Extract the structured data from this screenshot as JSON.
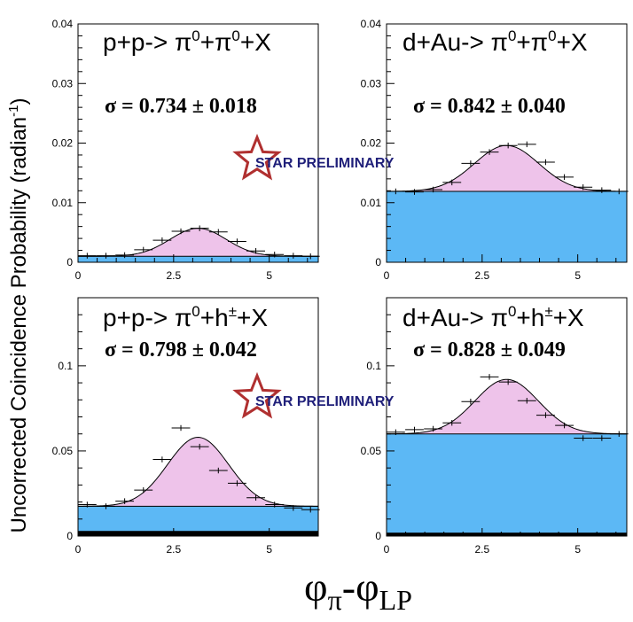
{
  "figure": {
    "ylabel_main": "Uncorrected Coincidence Probability (radian",
    "ylabel_sup": "-1",
    "ylabel_close": ")",
    "xlabel_phi1": "φ",
    "xlabel_sub1": "π",
    "xlabel_dash": "-",
    "xlabel_phi2": "φ",
    "xlabel_sub2": "LP",
    "watermark": "STAR PRELIMINARY",
    "colors": {
      "pedestal": "#5cb8f5",
      "gaussian": "#eec3ea",
      "star_red": "#b03030",
      "star_text": "#20207a"
    }
  },
  "chart_data": [
    {
      "type": "histogram",
      "title_parts": [
        {
          "t": "p+p-> π",
          "sup": false
        },
        {
          "t": "0",
          "sup": true
        },
        {
          "t": "+π",
          "sup": false
        },
        {
          "t": "0",
          "sup": true
        },
        {
          "t": "+X",
          "sup": false
        }
      ],
      "sigma": "σ = 0.734 ± 0.018",
      "xlim": [
        0,
        6.283
      ],
      "ylim": [
        0,
        0.04
      ],
      "yticks": [
        0,
        0.01,
        0.02,
        0.03,
        0.04
      ],
      "ytick_labels": [
        "0",
        "0.01",
        "0.02",
        "0.03",
        "0.04"
      ],
      "xticks": [
        0,
        2.5,
        5
      ],
      "xtick_labels": [
        "0",
        "2.5",
        "5"
      ],
      "pedestal": 0.001,
      "gauss_amplitude": 0.0047,
      "gauss_mean": 3.14,
      "gauss_sigma": 0.734,
      "black_band": 0,
      "points": [
        {
          "x": 0.24,
          "y": 0.0011
        },
        {
          "x": 0.73,
          "y": 0.0011
        },
        {
          "x": 1.22,
          "y": 0.0012
        },
        {
          "x": 1.71,
          "y": 0.0021
        },
        {
          "x": 2.2,
          "y": 0.0037
        },
        {
          "x": 2.69,
          "y": 0.0052
        },
        {
          "x": 3.18,
          "y": 0.0057
        },
        {
          "x": 3.67,
          "y": 0.0051
        },
        {
          "x": 4.16,
          "y": 0.0035
        },
        {
          "x": 4.65,
          "y": 0.0019
        },
        {
          "x": 5.14,
          "y": 0.0013
        },
        {
          "x": 5.63,
          "y": 0.0011
        },
        {
          "x": 6.08,
          "y": 0.001
        }
      ]
    },
    {
      "type": "histogram",
      "title_parts": [
        {
          "t": "d+Au-> π",
          "sup": false
        },
        {
          "t": "0",
          "sup": true
        },
        {
          "t": "+π",
          "sup": false
        },
        {
          "t": "0",
          "sup": true
        },
        {
          "t": "+X",
          "sup": false
        }
      ],
      "sigma": "σ = 0.842 ± 0.040",
      "xlim": [
        0,
        6.283
      ],
      "ylim": [
        0,
        0.04
      ],
      "yticks": [
        0,
        0.01,
        0.02,
        0.03,
        0.04
      ],
      "ytick_labels": [
        "0",
        "0.01",
        "0.02",
        "0.03",
        "0.04"
      ],
      "xticks": [
        0,
        2.5,
        5
      ],
      "xtick_labels": [
        "0",
        "2.5",
        "5"
      ],
      "pedestal": 0.0119,
      "gauss_amplitude": 0.0077,
      "gauss_mean": 3.14,
      "gauss_sigma": 0.842,
      "black_band": 0,
      "points": [
        {
          "x": 0.24,
          "y": 0.0119
        },
        {
          "x": 0.73,
          "y": 0.0118
        },
        {
          "x": 1.22,
          "y": 0.0122
        },
        {
          "x": 1.71,
          "y": 0.0134
        },
        {
          "x": 2.2,
          "y": 0.0166
        },
        {
          "x": 2.69,
          "y": 0.0185
        },
        {
          "x": 3.18,
          "y": 0.0196
        },
        {
          "x": 3.67,
          "y": 0.0198
        },
        {
          "x": 4.16,
          "y": 0.0168
        },
        {
          "x": 4.65,
          "y": 0.0143
        },
        {
          "x": 5.14,
          "y": 0.0126
        },
        {
          "x": 5.63,
          "y": 0.0121
        },
        {
          "x": 6.08,
          "y": 0.0119
        }
      ]
    },
    {
      "type": "histogram",
      "title_parts": [
        {
          "t": "p+p-> π",
          "sup": false
        },
        {
          "t": "0",
          "sup": true
        },
        {
          "t": "+h",
          "sup": false
        },
        {
          "t": "±",
          "sup": true
        },
        {
          "t": "+X",
          "sup": false
        }
      ],
      "sigma": "σ = 0.798 ± 0.042",
      "xlim": [
        0,
        6.283
      ],
      "ylim": [
        0,
        0.14
      ],
      "yticks": [
        0,
        0.05,
        0.1
      ],
      "ytick_labels": [
        "0",
        "0.05",
        "0.1"
      ],
      "xticks": [
        0,
        2.5,
        5
      ],
      "xtick_labels": [
        "0",
        "2.5",
        "5"
      ],
      "pedestal": 0.0175,
      "gauss_amplitude": 0.0405,
      "gauss_mean": 3.14,
      "gauss_sigma": 0.798,
      "black_band": 0.003,
      "points": [
        {
          "x": 0.24,
          "y": 0.0185
        },
        {
          "x": 0.73,
          "y": 0.0175
        },
        {
          "x": 1.22,
          "y": 0.0205
        },
        {
          "x": 1.71,
          "y": 0.027
        },
        {
          "x": 2.2,
          "y": 0.045
        },
        {
          "x": 2.69,
          "y": 0.0635
        },
        {
          "x": 3.18,
          "y": 0.0525
        },
        {
          "x": 3.67,
          "y": 0.0385
        },
        {
          "x": 4.16,
          "y": 0.031
        },
        {
          "x": 4.65,
          "y": 0.0225
        },
        {
          "x": 5.14,
          "y": 0.0185
        },
        {
          "x": 5.63,
          "y": 0.0165
        },
        {
          "x": 6.08,
          "y": 0.0155
        }
      ]
    },
    {
      "type": "histogram",
      "title_parts": [
        {
          "t": "d+Au-> π",
          "sup": false
        },
        {
          "t": "0",
          "sup": true
        },
        {
          "t": "+h",
          "sup": false
        },
        {
          "t": "±",
          "sup": true
        },
        {
          "t": "+X",
          "sup": false
        }
      ],
      "sigma": "σ = 0.828 ± 0.049",
      "xlim": [
        0,
        6.283
      ],
      "ylim": [
        0,
        0.14
      ],
      "yticks": [
        0,
        0.05,
        0.1
      ],
      "ytick_labels": [
        "0",
        "0.05",
        "0.1"
      ],
      "xticks": [
        0,
        2.5,
        5
      ],
      "xtick_labels": [
        "0",
        "2.5",
        "5"
      ],
      "pedestal": 0.06,
      "gauss_amplitude": 0.032,
      "gauss_mean": 3.14,
      "gauss_sigma": 0.828,
      "black_band": 0.002,
      "points": [
        {
          "x": 0.24,
          "y": 0.061
        },
        {
          "x": 0.73,
          "y": 0.0625
        },
        {
          "x": 1.22,
          "y": 0.063
        },
        {
          "x": 1.71,
          "y": 0.0665
        },
        {
          "x": 2.2,
          "y": 0.079
        },
        {
          "x": 2.69,
          "y": 0.0935
        },
        {
          "x": 3.18,
          "y": 0.0905
        },
        {
          "x": 3.67,
          "y": 0.0795
        },
        {
          "x": 4.16,
          "y": 0.071
        },
        {
          "x": 4.65,
          "y": 0.065
        },
        {
          "x": 5.14,
          "y": 0.0575
        },
        {
          "x": 5.63,
          "y": 0.0575
        },
        {
          "x": 6.08,
          "y": 0.06
        }
      ]
    }
  ]
}
